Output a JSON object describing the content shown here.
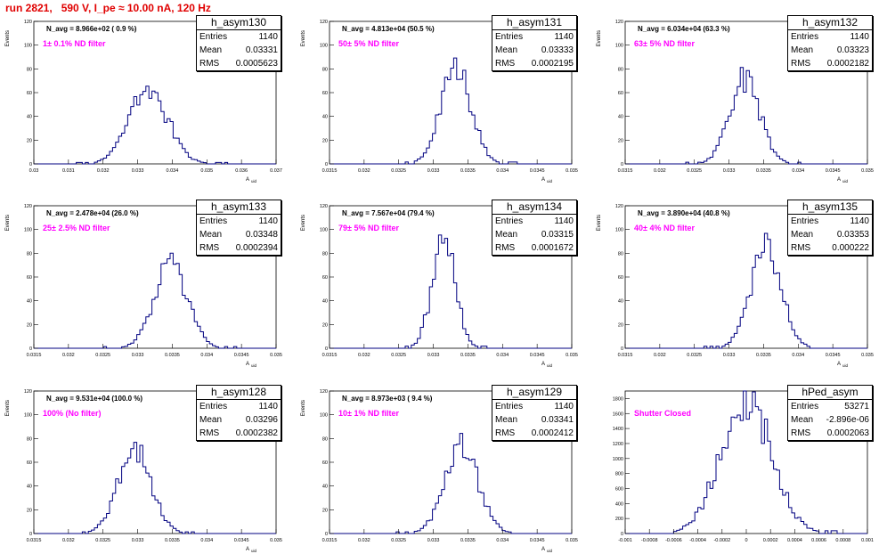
{
  "title": "run 2821,   590 V, I_pe ≈ 10.00 nA, 120 Hz",
  "stats_labels": {
    "entries": "Entries",
    "mean": "Mean",
    "rms": "RMS"
  },
  "colors": {
    "histogram": "#000080",
    "title": "#e00000",
    "annotation": "#ff00ff"
  },
  "chart_data": [
    {
      "type": "bar",
      "name": "h_asym130",
      "annotation": "N_avg = 8.966e+02 ( 0.9 %)",
      "filter": "1± 0.1% ND filter",
      "stats": {
        "entries": "1140",
        "mean": "0.03331",
        "rms": "0.0005623"
      },
      "xlabel": "A_uid",
      "ylabel": "Events",
      "xlim": [
        0.03,
        0.037
      ],
      "ylim": [
        0,
        120
      ],
      "xticks": [
        "0.03",
        "0.031",
        "0.032",
        "0.033",
        "0.034",
        "0.035",
        "0.036",
        "0.037"
      ],
      "xtick_values": [
        0.03,
        0.031,
        0.032,
        0.033,
        0.034,
        0.035,
        0.036,
        0.037
      ],
      "yticks": [
        "0",
        "20",
        "40",
        "60",
        "80",
        "100",
        "120"
      ],
      "mean": 0.03331,
      "rms": 0.0005623,
      "peak": 62
    },
    {
      "type": "bar",
      "name": "h_asym131",
      "annotation": "N_avg = 4.813e+04 (50.5 %)",
      "filter": "50± 5% ND filter",
      "stats": {
        "entries": "1140",
        "mean": "0.03333",
        "rms": "0.0002195"
      },
      "xlabel": "A_uid",
      "ylabel": "Events",
      "xlim": [
        0.0315,
        0.035
      ],
      "ylim": [
        0,
        120
      ],
      "xticks": [
        "0.0315",
        "0.032",
        "0.0325",
        "0.033",
        "0.0335",
        "0.034",
        "0.0345",
        "0.035"
      ],
      "xtick_values": [
        0.0315,
        0.032,
        0.0325,
        0.033,
        0.0335,
        0.034,
        0.0345,
        0.035
      ],
      "yticks": [
        "0",
        "20",
        "40",
        "60",
        "80",
        "100",
        "120"
      ],
      "mean": 0.03333,
      "rms": 0.0002195,
      "peak": 78
    },
    {
      "type": "bar",
      "name": "h_asym132",
      "annotation": "N_avg = 6.034e+04 (63.3 %)",
      "filter": "63± 5% ND filter",
      "stats": {
        "entries": "1140",
        "mean": "0.03323",
        "rms": "0.0002182"
      },
      "xlabel": "A_uid",
      "ylabel": "Events",
      "xlim": [
        0.0315,
        0.035
      ],
      "ylim": [
        0,
        120
      ],
      "xticks": [
        "0.0315",
        "0.032",
        "0.0325",
        "0.033",
        "0.0335",
        "0.034",
        "0.0345",
        "0.035"
      ],
      "xtick_values": [
        0.0315,
        0.032,
        0.0325,
        0.033,
        0.0335,
        0.034,
        0.0345,
        0.035
      ],
      "yticks": [
        "0",
        "20",
        "40",
        "60",
        "80",
        "100",
        "120"
      ],
      "mean": 0.03323,
      "rms": 0.0002182,
      "peak": 72
    },
    {
      "type": "bar",
      "name": "h_asym133",
      "annotation": "N_avg = 2.478e+04 (26.0 %)",
      "filter": "25± 2.5% ND filter",
      "stats": {
        "entries": "1140",
        "mean": "0.03348",
        "rms": "0.0002394"
      },
      "xlabel": "A_uid",
      "ylabel": "Events",
      "xlim": [
        0.0315,
        0.035
      ],
      "ylim": [
        0,
        120
      ],
      "xticks": [
        "0.0315",
        "0.032",
        "0.0325",
        "0.033",
        "0.0335",
        "0.034",
        "0.0345",
        "0.035"
      ],
      "xtick_values": [
        0.0315,
        0.032,
        0.0325,
        0.033,
        0.0335,
        0.034,
        0.0345,
        0.035
      ],
      "yticks": [
        "0",
        "20",
        "40",
        "60",
        "80",
        "100",
        "120"
      ],
      "mean": 0.03348,
      "rms": 0.0002394,
      "peak": 70
    },
    {
      "type": "bar",
      "name": "h_asym134",
      "annotation": "N_avg = 7.567e+04 (79.4 %)",
      "filter": "79± 5% ND filter",
      "stats": {
        "entries": "1140",
        "mean": "0.03315",
        "rms": "0.0001672"
      },
      "xlabel": "A_uid",
      "ylabel": "Events",
      "xlim": [
        0.0315,
        0.035
      ],
      "ylim": [
        0,
        120
      ],
      "xticks": [
        "0.0315",
        "0.032",
        "0.0325",
        "0.033",
        "0.0335",
        "0.034",
        "0.0345",
        "0.035"
      ],
      "xtick_values": [
        0.0315,
        0.032,
        0.0325,
        0.033,
        0.0335,
        0.034,
        0.0345,
        0.035
      ],
      "yticks": [
        "0",
        "20",
        "40",
        "60",
        "80",
        "100",
        "120"
      ],
      "mean": 0.03315,
      "rms": 0.0001672,
      "peak": 90
    },
    {
      "type": "bar",
      "name": "h_asym135",
      "annotation": "N_avg = 3.890e+04 (40.8 %)",
      "filter": "40± 4% ND filter",
      "stats": {
        "entries": "1140",
        "mean": "0.03353",
        "rms": "0.000222"
      },
      "xlabel": "A_uid",
      "ylabel": "Events",
      "xlim": [
        0.0315,
        0.035
      ],
      "ylim": [
        0,
        120
      ],
      "xticks": [
        "0.0315",
        "0.032",
        "0.0325",
        "0.033",
        "0.0335",
        "0.034",
        "0.0345",
        "0.035"
      ],
      "xtick_values": [
        0.0315,
        0.032,
        0.0325,
        0.033,
        0.0335,
        0.034,
        0.0345,
        0.035
      ],
      "yticks": [
        "0",
        "20",
        "40",
        "60",
        "80",
        "100",
        "120"
      ],
      "mean": 0.03353,
      "rms": 0.000222,
      "peak": 86
    },
    {
      "type": "bar",
      "name": "h_asym128",
      "annotation": "N_avg = 9.531e+04 (100.0 %)",
      "filter": "100% (No filter)",
      "stats": {
        "entries": "1140",
        "mean": "0.03296",
        "rms": "0.0002382"
      },
      "xlabel": "A_uid",
      "ylabel": "Events",
      "xlim": [
        0.0315,
        0.035
      ],
      "ylim": [
        0,
        120
      ],
      "xticks": [
        "0.0315",
        "0.032",
        "0.0325",
        "0.033",
        "0.0335",
        "0.034",
        "0.0345",
        "0.035"
      ],
      "xtick_values": [
        0.0315,
        0.032,
        0.0325,
        0.033,
        0.0335,
        0.034,
        0.0345,
        0.035
      ],
      "yticks": [
        "0",
        "20",
        "40",
        "60",
        "80",
        "100",
        "120"
      ],
      "mean": 0.03296,
      "rms": 0.0002382,
      "peak": 70
    },
    {
      "type": "bar",
      "name": "h_asym129",
      "annotation": "N_avg = 8.973e+03 ( 9.4 %)",
      "filter": "10± 1% ND filter",
      "stats": {
        "entries": "1140",
        "mean": "0.03341",
        "rms": "0.0002412"
      },
      "xlabel": "A_uid",
      "ylabel": "Events",
      "xlim": [
        0.0315,
        0.035
      ],
      "ylim": [
        0,
        120
      ],
      "xticks": [
        "0.0315",
        "0.032",
        "0.0325",
        "0.033",
        "0.0335",
        "0.034",
        "0.0345",
        "0.035"
      ],
      "xtick_values": [
        0.0315,
        0.032,
        0.0325,
        0.033,
        0.0335,
        0.034,
        0.0345,
        0.035
      ],
      "yticks": [
        "0",
        "20",
        "40",
        "60",
        "80",
        "100",
        "120"
      ],
      "mean": 0.03341,
      "rms": 0.0002412,
      "peak": 72
    },
    {
      "type": "bar",
      "name": "hPed_asym",
      "annotation": "",
      "filter": "Shutter Closed",
      "stats": {
        "entries": "53271",
        "mean": "-2.896e-06",
        "rms": "0.0002063"
      },
      "xlabel": "",
      "ylabel": "",
      "xlim": [
        -0.001,
        0.001
      ],
      "ylim": [
        0,
        1900
      ],
      "xticks": [
        "-0.001",
        "-0.0008",
        "-0.0006",
        "-0.0004",
        "-0.0002",
        "0",
        "0.0002",
        "0.0004",
        "0.0006",
        "0.0008",
        "0.001"
      ],
      "xtick_values": [
        -0.001,
        -0.0008,
        -0.0006,
        -0.0004,
        -0.0002,
        0,
        0.0002,
        0.0004,
        0.0006,
        0.0008,
        0.001
      ],
      "yticks": [
        "0",
        "200",
        "400",
        "600",
        "800",
        "1000",
        "1200",
        "1400",
        "1600",
        "1800"
      ],
      "mean": -2.896e-06,
      "rms": 0.0002063,
      "peak": 1820
    }
  ]
}
